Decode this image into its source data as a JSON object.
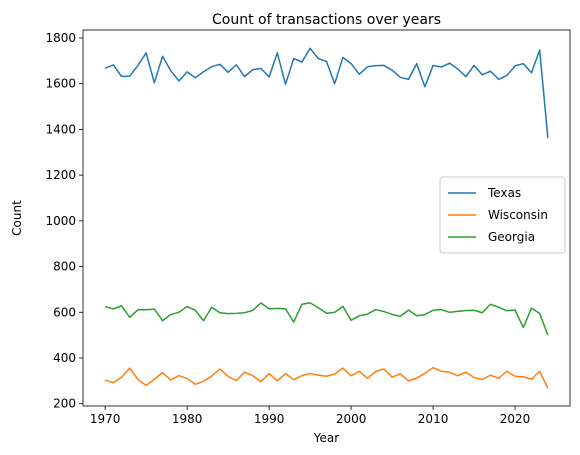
{
  "chart_data": {
    "type": "line",
    "title": "Count of transactions over years",
    "xlabel": "Year",
    "ylabel": "Count",
    "xlim": [
      1967.3,
      2026.7
    ],
    "ylim": [
      190,
      1835
    ],
    "xticks": [
      1970,
      1980,
      1990,
      2000,
      2010,
      2020
    ],
    "yticks": [
      200,
      400,
      600,
      800,
      1000,
      1200,
      1400,
      1600,
      1800
    ],
    "grid": false,
    "legend_position": "center-right",
    "x": [
      1970,
      1971,
      1972,
      1973,
      1974,
      1975,
      1976,
      1977,
      1978,
      1979,
      1980,
      1981,
      1982,
      1983,
      1984,
      1985,
      1986,
      1987,
      1988,
      1989,
      1990,
      1991,
      1992,
      1993,
      1994,
      1995,
      1996,
      1997,
      1998,
      1999,
      2000,
      2001,
      2002,
      2003,
      2004,
      2005,
      2006,
      2007,
      2008,
      2009,
      2010,
      2011,
      2012,
      2013,
      2014,
      2015,
      2016,
      2017,
      2018,
      2019,
      2020,
      2021,
      2022,
      2023,
      2024
    ],
    "series": [
      {
        "name": "Texas",
        "color": "#1f77b4",
        "values": [
          1668,
          1682,
          1632,
          1633,
          1680,
          1735,
          1604,
          1720,
          1657,
          1612,
          1652,
          1626,
          1652,
          1675,
          1685,
          1650,
          1683,
          1631,
          1661,
          1667,
          1630,
          1735,
          1598,
          1710,
          1695,
          1755,
          1710,
          1697,
          1600,
          1715,
          1688,
          1641,
          1674,
          1679,
          1680,
          1659,
          1628,
          1619,
          1688,
          1587,
          1680,
          1673,
          1690,
          1665,
          1631,
          1680,
          1639,
          1655,
          1619,
          1636,
          1678,
          1688,
          1648,
          1747,
          1363
        ]
      },
      {
        "name": "Wisconsin",
        "color": "#ff7f0e",
        "values": [
          303,
          292,
          316,
          356,
          306,
          280,
          307,
          336,
          304,
          323,
          310,
          285,
          298,
          321,
          352,
          319,
          301,
          338,
          323,
          296,
          332,
          300,
          332,
          305,
          323,
          332,
          325,
          320,
          330,
          356,
          322,
          342,
          311,
          341,
          352,
          316,
          331,
          300,
          312,
          333,
          358,
          342,
          338,
          322,
          338,
          314,
          306,
          325,
          311,
          342,
          320,
          318,
          307,
          342,
          268
        ]
      },
      {
        "name": "Georgia",
        "color": "#2ca02c",
        "values": [
          625,
          615,
          628,
          578,
          611,
          611,
          614,
          563,
          590,
          600,
          625,
          609,
          563,
          622,
          598,
          594,
          595,
          598,
          608,
          641,
          615,
          617,
          615,
          557,
          635,
          641,
          620,
          596,
          600,
          626,
          565,
          585,
          592,
          612,
          603,
          591,
          582,
          610,
          585,
          590,
          609,
          612,
          600,
          604,
          608,
          609,
          598,
          635,
          622,
          607,
          610,
          533,
          618,
          595,
          500
        ]
      }
    ]
  }
}
